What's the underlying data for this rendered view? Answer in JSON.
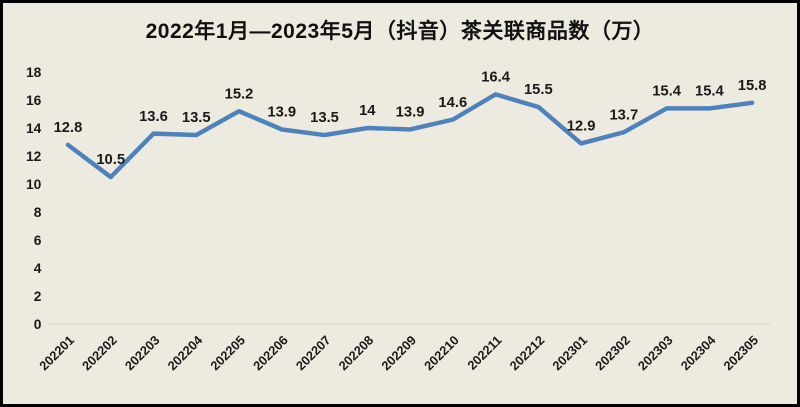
{
  "page": {
    "background_color": "#edeadf",
    "border_color": "#000000"
  },
  "chart_data": {
    "type": "line",
    "title": "2022年1月—2023年5月（抖音）茶关联商品数（万）",
    "categories": [
      "202201",
      "202202",
      "202203",
      "202204",
      "202205",
      "202206",
      "202207",
      "202208",
      "202209",
      "202210",
      "202211",
      "202212",
      "202301",
      "202302",
      "202303",
      "202304",
      "202305"
    ],
    "values": [
      12.8,
      10.5,
      13.6,
      13.5,
      15.2,
      13.9,
      13.5,
      14,
      13.9,
      14.6,
      16.4,
      15.5,
      12.9,
      13.7,
      15.4,
      15.4,
      15.8
    ],
    "xlabel": "",
    "ylabel": "",
    "ylim": [
      0,
      18
    ],
    "yticks": [
      0,
      2,
      4,
      6,
      8,
      10,
      12,
      14,
      16,
      18
    ],
    "grid": false,
    "legend_position": "none",
    "data_labels_shown": true,
    "line_color": "#4f81bd",
    "text_color": "#1a1a1a",
    "baseline_color": "#d8d5ca"
  }
}
